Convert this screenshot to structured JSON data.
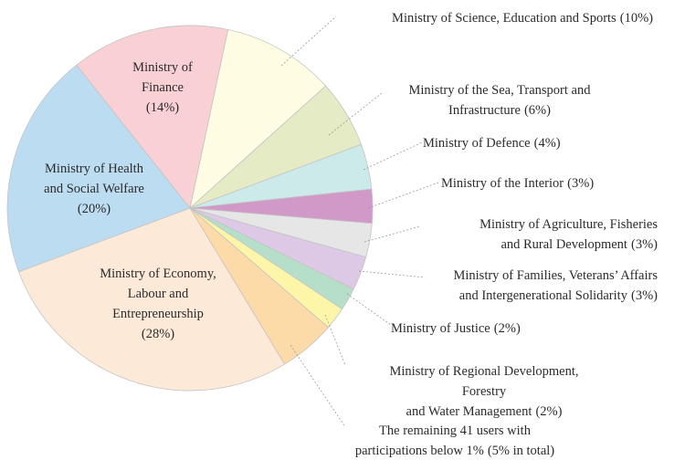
{
  "chart_data": {
    "type": "pie",
    "categories": [
      "Ministry of Science, Education and Sports",
      "Ministry of the Sea, Transport and\nInfrastructure",
      "Ministry of Defence",
      "Ministry of the Interior",
      "Ministry of Agriculture, Fisheries\nand Rural Development",
      "Ministry of Families, Veterans’ Affairs\nand Intergenerational Solidarity",
      "Ministry of Justice",
      "Ministry of Regional Development, Forestry\nand Water Management",
      "The remaining 41 users with\nparticipations below 1%",
      "Ministry of Economy,\nLabour and\nEntrepreneurship",
      "Ministry of Health\nand Social Welfare",
      "Ministry of\nFinance"
    ],
    "values": [
      10,
      6,
      4,
      3,
      3,
      3,
      2,
      2,
      5,
      28,
      20,
      14
    ],
    "value_labels": [
      "(10%)",
      "(6%)",
      "(4%)",
      "(3%)",
      "(3%)",
      "(3%)",
      "(2%)",
      "(2%)",
      "(5% in total)",
      "(28%)",
      "(20%)",
      "(14%)"
    ],
    "colors": [
      "#fefde3",
      "#e5ecc5",
      "#cdeaea",
      "#d199c7",
      "#e6e6e6",
      "#ddc9e5",
      "#b5dfc9",
      "#fdf6a8",
      "#fddba8",
      "#fde9d8",
      "#bcdcf2",
      "#f9d0d4"
    ]
  }
}
